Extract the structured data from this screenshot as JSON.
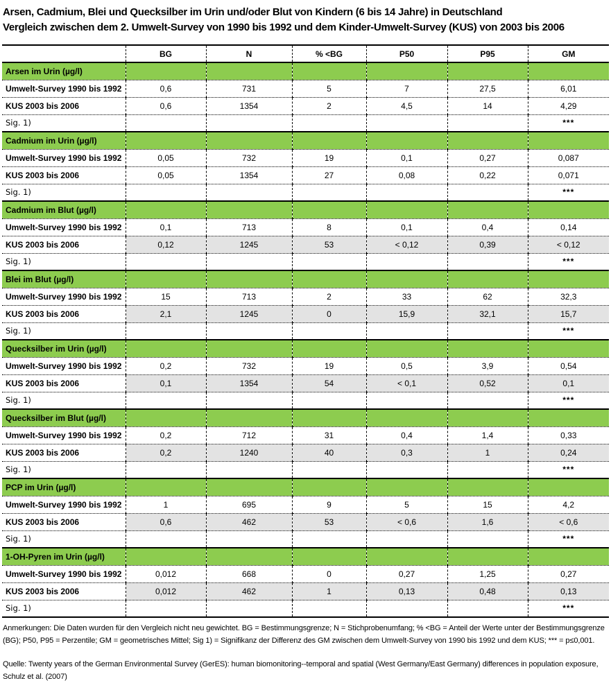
{
  "title": {
    "line1": "Arsen, Cadmium, Blei und Quecksilber im Urin und/oder Blut von Kindern (6 bis 14 Jahre) in Deutschland",
    "line2": "Vergleich zwischen dem 2. Umwelt-Survey von 1990 bis 1992 und dem Kinder-Umwelt-Survey (KUS) von 2003 bis 2006"
  },
  "colors": {
    "section_green": "#8dcc4f",
    "shaded_gray": "#e3e3e3"
  },
  "table": {
    "columns": [
      "",
      "BG",
      "N",
      "% <BG",
      "P50",
      "P95",
      "GM"
    ],
    "sections": [
      {
        "header": "Arsen im Urin (µg/l)",
        "rows": [
          {
            "label": "Umwelt-Survey 1990 bis 1992",
            "shaded": false,
            "sig": false,
            "cells": [
              "0,6",
              "731",
              "5",
              "7",
              "27,5",
              "6,01"
            ]
          },
          {
            "label": "KUS 2003 bis 2006",
            "shaded": false,
            "sig": false,
            "cells": [
              "0,6",
              "1354",
              "2",
              "4,5",
              "14",
              "4,29"
            ]
          },
          {
            "label": "Sig. 1)",
            "shaded": false,
            "sig": true,
            "cells": [
              "",
              "",
              "",
              "",
              "",
              "***"
            ]
          }
        ]
      },
      {
        "header": "Cadmium im Urin (µg/l)",
        "rows": [
          {
            "label": "Umwelt-Survey 1990 bis 1992",
            "shaded": false,
            "sig": false,
            "cells": [
              "0,05",
              "732",
              "19",
              "0,1",
              "0,27",
              "0,087"
            ]
          },
          {
            "label": "KUS 2003 bis 2006",
            "shaded": false,
            "sig": false,
            "cells": [
              "0,05",
              "1354",
              "27",
              "0,08",
              "0,22",
              "0,071"
            ]
          },
          {
            "label": "Sig. 1)",
            "shaded": false,
            "sig": true,
            "cells": [
              "",
              "",
              "",
              "",
              "",
              "***"
            ]
          }
        ]
      },
      {
        "header": "Cadmium im Blut (µg/l)",
        "rows": [
          {
            "label": "Umwelt-Survey 1990 bis 1992",
            "shaded": false,
            "sig": false,
            "cells": [
              "0,1",
              "713",
              "8",
              "0,1",
              "0,4",
              "0,14"
            ]
          },
          {
            "label": "KUS 2003 bis 2006",
            "shaded": true,
            "sig": false,
            "cells": [
              "0,12",
              "1245",
              "53",
              "< 0,12",
              "0,39",
              "< 0,12"
            ]
          },
          {
            "label": "Sig. 1)",
            "shaded": false,
            "sig": true,
            "cells": [
              "",
              "",
              "",
              "",
              "",
              "***"
            ]
          }
        ]
      },
      {
        "header": "Blei im Blut (µg/l)",
        "rows": [
          {
            "label": "Umwelt-Survey 1990 bis 1992",
            "shaded": false,
            "sig": false,
            "cells": [
              "15",
              "713",
              "2",
              "33",
              "62",
              "32,3"
            ]
          },
          {
            "label": "KUS 2003 bis 2006",
            "shaded": true,
            "sig": false,
            "cells": [
              "2,1",
              "1245",
              "0",
              "15,9",
              "32,1",
              "15,7"
            ]
          },
          {
            "label": "Sig. 1)",
            "shaded": false,
            "sig": true,
            "cells": [
              "",
              "",
              "",
              "",
              "",
              "***"
            ]
          }
        ]
      },
      {
        "header": "Quecksilber im Urin (µg/l)",
        "rows": [
          {
            "label": "Umwelt-Survey 1990 bis 1992",
            "shaded": false,
            "sig": false,
            "cells": [
              "0,2",
              "732",
              "19",
              "0,5",
              "3,9",
              "0,54"
            ]
          },
          {
            "label": "KUS 2003 bis 2006",
            "shaded": true,
            "sig": false,
            "cells": [
              "0,1",
              "1354",
              "54",
              "< 0,1",
              "0,52",
              "0,1"
            ]
          },
          {
            "label": "Sig. 1)",
            "shaded": false,
            "sig": true,
            "cells": [
              "",
              "",
              "",
              "",
              "",
              "***"
            ]
          }
        ]
      },
      {
        "header": "Quecksilber im Blut (µg/l)",
        "rows": [
          {
            "label": "Umwelt-Survey 1990 bis 1992",
            "shaded": false,
            "sig": false,
            "cells": [
              "0,2",
              "712",
              "31",
              "0,4",
              "1,4",
              "0,33"
            ]
          },
          {
            "label": "KUS 2003 bis 2006",
            "shaded": true,
            "sig": false,
            "cells": [
              "0,2",
              "1240",
              "40",
              "0,3",
              "1",
              "0,24"
            ]
          },
          {
            "label": "Sig. 1)",
            "shaded": false,
            "sig": true,
            "cells": [
              "",
              "",
              "",
              "",
              "",
              "***"
            ]
          }
        ]
      },
      {
        "header": "PCP im Urin (µg/l)",
        "rows": [
          {
            "label": "Umwelt-Survey 1990 bis 1992",
            "shaded": false,
            "sig": false,
            "cells": [
              "1",
              "695",
              "9",
              "5",
              "15",
              "4,2"
            ]
          },
          {
            "label": "KUS 2003 bis 2006",
            "shaded": true,
            "sig": false,
            "cells": [
              "0,6",
              "462",
              "53",
              "< 0,6",
              "1,6",
              "< 0,6"
            ]
          },
          {
            "label": "Sig. 1)",
            "shaded": false,
            "sig": true,
            "cells": [
              "",
              "",
              "",
              "",
              "",
              "***"
            ]
          }
        ]
      },
      {
        "header": "1-OH-Pyren im Urin (µg/l)",
        "rows": [
          {
            "label": "Umwelt-Survey 1990 bis 1992",
            "shaded": false,
            "sig": false,
            "cells": [
              "0,012",
              "668",
              "0",
              "0,27",
              "1,25",
              "0,27"
            ]
          },
          {
            "label": "KUS 2003 bis 2006",
            "shaded": true,
            "sig": false,
            "cells": [
              "0,012",
              "462",
              "1",
              "0,13",
              "0,48",
              "0,13"
            ]
          },
          {
            "label": "Sig. 1)",
            "shaded": false,
            "sig": true,
            "cells": [
              "",
              "",
              "",
              "",
              "",
              "***"
            ]
          }
        ]
      }
    ]
  },
  "notes": {
    "anmerkungen": "Anmerkungen: Die Daten wurden für den Vergleich nicht neu gewichtet. BG = Bestimmungsgrenze; N = Stichprobenumfang; % <BG = Anteil der Werte unter der Bestimmungsgrenze (BG); P50, P95 = Perzentile; GM = geometrisches Mittel; Sig 1) = Signifikanz der Differenz des GM zwischen dem Umwelt-Survey von 1990 bis 1992 und dem KUS; *** = p≤0,001.",
    "quelle": "Quelle: Twenty years of the German Environmental Survey (GerES): human biomonitoring--temporal and spatial (West Germany/East Germany) differences in population exposure, Schulz et al. (2007)"
  }
}
